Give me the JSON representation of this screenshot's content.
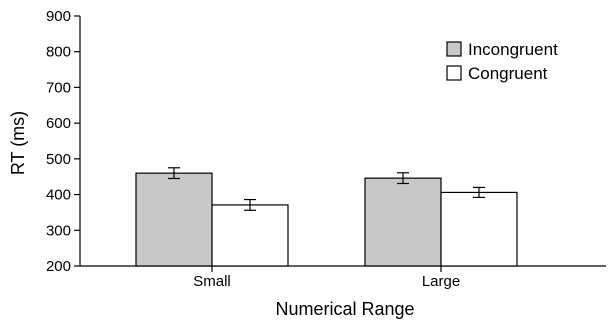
{
  "chart_data": {
    "type": "bar",
    "categories": [
      "Small",
      "Large"
    ],
    "series": [
      {
        "name": "Incongruent",
        "values": [
          460,
          446
        ],
        "errors": [
          15,
          15
        ],
        "color": "#c8c8c8"
      },
      {
        "name": "Congruent",
        "values": [
          371,
          406
        ],
        "errors": [
          15,
          14
        ],
        "color": "#ffffff"
      }
    ],
    "xlabel": "Numerical Range",
    "ylabel": "RT (ms)",
    "ylim": [
      200,
      900
    ],
    "yticks": [
      200,
      300,
      400,
      500,
      600,
      700,
      800,
      900
    ],
    "legend_position": "top-right",
    "grid": false
  }
}
